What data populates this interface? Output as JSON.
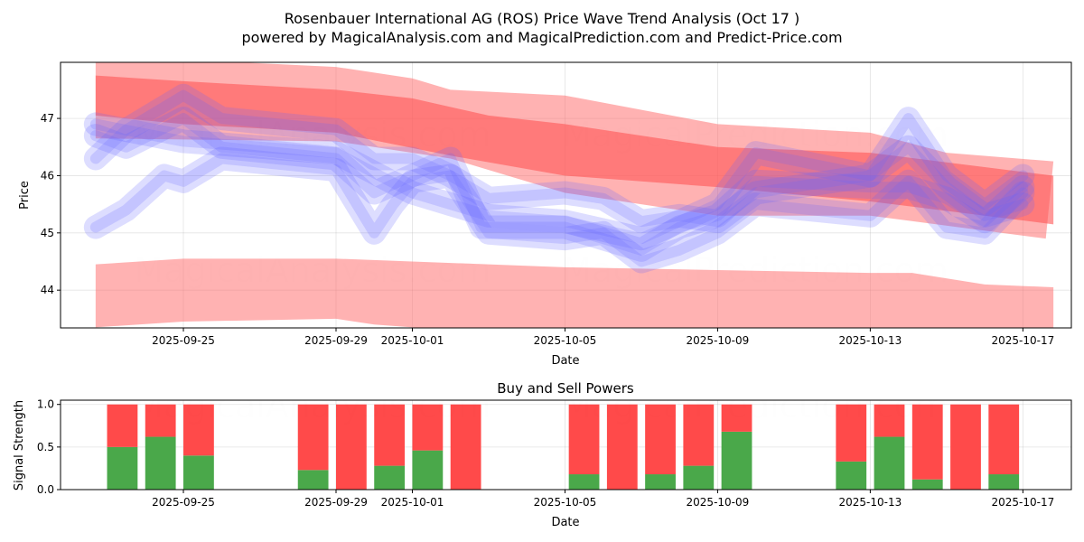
{
  "title_line1": "Rosenbauer International AG (ROS) Price Wave Trend Analysis (Oct 17 )",
  "title_line2": "powered by MagicalAnalysis.com and MagicalPrediction.com and Predict-Price.com",
  "watermarks": [
    "MagicalAnalysis.com",
    "MagicalPrediction.com"
  ],
  "chart_data": [
    {
      "type": "area",
      "title": "",
      "xlabel": "Date",
      "ylabel": "Price",
      "x_unit": "days since 2025-09-25",
      "xlim": [
        -3.22,
        23.27
      ],
      "ylim": [
        43.34,
        47.98
      ],
      "grid": true,
      "xticks": [
        {
          "v": 0,
          "label": "2025-09-25"
        },
        {
          "v": 4,
          "label": "2025-09-29"
        },
        {
          "v": 6,
          "label": "2025-10-01"
        },
        {
          "v": 10,
          "label": "2025-10-05"
        },
        {
          "v": 14,
          "label": "2025-10-09"
        },
        {
          "v": 18,
          "label": "2025-10-13"
        },
        {
          "v": 22,
          "label": "2025-10-17"
        }
      ],
      "yticks": [
        44,
        45,
        46,
        47
      ],
      "red_bands": [
        {
          "name": "upper-outer",
          "color": "#ff6666",
          "opacity": 0.5,
          "upper": [
            [
              -2.3,
              48.1
            ],
            [
              4,
              47.9
            ],
            [
              6,
              47.7
            ],
            [
              7,
              47.5
            ],
            [
              10,
              47.4
            ],
            [
              14,
              46.9
            ],
            [
              18,
              46.75
            ],
            [
              20,
              46.4
            ],
            [
              22.8,
              46.25
            ]
          ],
          "lower": [
            [
              -2.3,
              46.65
            ],
            [
              4,
              46.6
            ],
            [
              7,
              46.3
            ],
            [
              10,
              45.7
            ],
            [
              14,
              45.3
            ],
            [
              18,
              45.3
            ],
            [
              22.6,
              44.9
            ]
          ]
        },
        {
          "name": "upper-inner",
          "color": "#ff5555",
          "opacity": 0.6,
          "upper": [
            [
              -2.3,
              47.75
            ],
            [
              0,
              47.65
            ],
            [
              4,
              47.5
            ],
            [
              6,
              47.35
            ],
            [
              8,
              47.05
            ],
            [
              10,
              46.9
            ],
            [
              14,
              46.5
            ],
            [
              18,
              46.4
            ],
            [
              22.8,
              46.0
            ]
          ],
          "lower": [
            [
              -2.3,
              47.05
            ],
            [
              0,
              46.9
            ],
            [
              4,
              46.75
            ],
            [
              7,
              46.35
            ],
            [
              10,
              46.0
            ],
            [
              14,
              45.8
            ],
            [
              18,
              45.55
            ],
            [
              22.8,
              45.15
            ]
          ]
        },
        {
          "name": "lower",
          "color": "#ff6666",
          "opacity": 0.5,
          "upper": [
            [
              -2.3,
              44.45
            ],
            [
              0,
              44.55
            ],
            [
              4,
              44.55
            ],
            [
              6,
              44.5
            ],
            [
              10,
              44.4
            ],
            [
              14,
              44.35
            ],
            [
              18,
              44.3
            ],
            [
              19.1,
              44.3
            ],
            [
              21,
              44.1
            ],
            [
              22.8,
              44.05
            ]
          ],
          "lower": [
            [
              -2.3,
              43.35
            ],
            [
              0,
              43.45
            ],
            [
              4,
              43.5
            ],
            [
              5,
              43.4
            ],
            [
              7,
              43.3
            ],
            [
              22.8,
              43.3
            ]
          ]
        }
      ],
      "blue_waves": [
        [
          [
            -2.3,
            46.7
          ],
          [
            -1.5,
            46.5
          ],
          [
            0,
            47.0
          ],
          [
            1,
            46.5
          ],
          [
            4,
            46.3
          ],
          [
            5,
            45.7
          ],
          [
            6,
            46.0
          ],
          [
            7,
            46.3
          ],
          [
            7.8,
            45.1
          ],
          [
            10,
            45.1
          ],
          [
            11,
            44.9
          ],
          [
            12,
            44.7
          ],
          [
            13,
            45.1
          ],
          [
            14,
            45.3
          ],
          [
            15,
            45.9
          ],
          [
            18,
            45.8
          ],
          [
            19,
            45.8
          ],
          [
            20,
            45.6
          ],
          [
            21,
            45.2
          ],
          [
            22,
            45.8
          ]
        ],
        [
          [
            -2.3,
            45.1
          ],
          [
            -1.5,
            45.4
          ],
          [
            -0.5,
            46.0
          ],
          [
            0,
            45.9
          ],
          [
            1,
            46.3
          ],
          [
            4,
            46.1
          ],
          [
            5,
            45.0
          ],
          [
            5.5,
            45.5
          ],
          [
            6,
            45.9
          ],
          [
            7,
            46.0
          ],
          [
            8,
            45.0
          ],
          [
            10,
            44.9
          ],
          [
            11,
            45.0
          ],
          [
            12,
            44.5
          ],
          [
            13,
            44.7
          ],
          [
            14,
            45.0
          ],
          [
            15,
            45.5
          ],
          [
            18,
            45.3
          ],
          [
            19,
            45.9
          ],
          [
            20,
            45.1
          ],
          [
            21,
            45.0
          ],
          [
            22,
            45.7
          ]
        ],
        [
          [
            -2.3,
            46.3
          ],
          [
            -1.5,
            46.8
          ],
          [
            0,
            47.4
          ],
          [
            1,
            47.0
          ],
          [
            4,
            46.8
          ],
          [
            5,
            46.3
          ],
          [
            6,
            46.3
          ],
          [
            7,
            46.0
          ],
          [
            8,
            45.6
          ],
          [
            10,
            45.7
          ],
          [
            11,
            45.6
          ],
          [
            12,
            45.2
          ],
          [
            13,
            45.3
          ],
          [
            14,
            45.2
          ],
          [
            15,
            45.7
          ],
          [
            18,
            46.0
          ],
          [
            19,
            47.0
          ],
          [
            20,
            46.0
          ],
          [
            21,
            45.5
          ],
          [
            22,
            46.0
          ]
        ],
        [
          [
            -2.3,
            46.9
          ],
          [
            0,
            46.6
          ],
          [
            4,
            46.4
          ],
          [
            6,
            45.7
          ],
          [
            7,
            45.5
          ],
          [
            8,
            45.3
          ],
          [
            10,
            45.2
          ],
          [
            12,
            44.9
          ],
          [
            14,
            45.5
          ],
          [
            15,
            46.4
          ],
          [
            18,
            46.0
          ],
          [
            19,
            46.5
          ],
          [
            20,
            45.8
          ],
          [
            21,
            45.3
          ],
          [
            22,
            45.5
          ]
        ]
      ],
      "blue_color": "#6666ff"
    },
    {
      "type": "bar",
      "title": "Buy and Sell Powers",
      "xlabel": "Date",
      "ylabel": "Signal Strength",
      "xlim": [
        -3.22,
        23.27
      ],
      "ylim": [
        0,
        1.05
      ],
      "yticks": [
        {
          "v": 0,
          "label": "0.0"
        },
        {
          "v": 0.5,
          "label": "0.5"
        },
        {
          "v": 1,
          "label": "1.0"
        }
      ],
      "xticks": [
        {
          "v": 0,
          "label": "2025-09-25"
        },
        {
          "v": 4,
          "label": "2025-09-29"
        },
        {
          "v": 6,
          "label": "2025-10-01"
        },
        {
          "v": 10,
          "label": "2025-10-05"
        },
        {
          "v": 14,
          "label": "2025-10-09"
        },
        {
          "v": 18,
          "label": "2025-10-13"
        },
        {
          "v": 22,
          "label": "2025-10-17"
        }
      ],
      "buy_color": "#4aa84a",
      "sell_color": "#ff4a4a",
      "x": [
        -1.6,
        -0.6,
        0.4,
        3.4,
        4.4,
        5.4,
        6.4,
        7.4,
        10.5,
        11.5,
        12.5,
        13.5,
        14.5,
        17.5,
        18.5,
        19.5,
        20.5,
        21.5
      ],
      "buy": [
        0.5,
        0.62,
        0.4,
        0.23,
        0,
        0.28,
        0.46,
        0,
        0.18,
        0,
        0.18,
        0.28,
        0.68,
        0.33,
        0.62,
        0.12,
        0,
        0.18
      ],
      "sell": [
        0.5,
        0.38,
        0.6,
        0.77,
        1,
        0.72,
        0.54,
        1,
        0.82,
        1,
        0.82,
        0.72,
        0.32,
        0.67,
        0.38,
        0.88,
        1,
        0.82
      ]
    }
  ]
}
